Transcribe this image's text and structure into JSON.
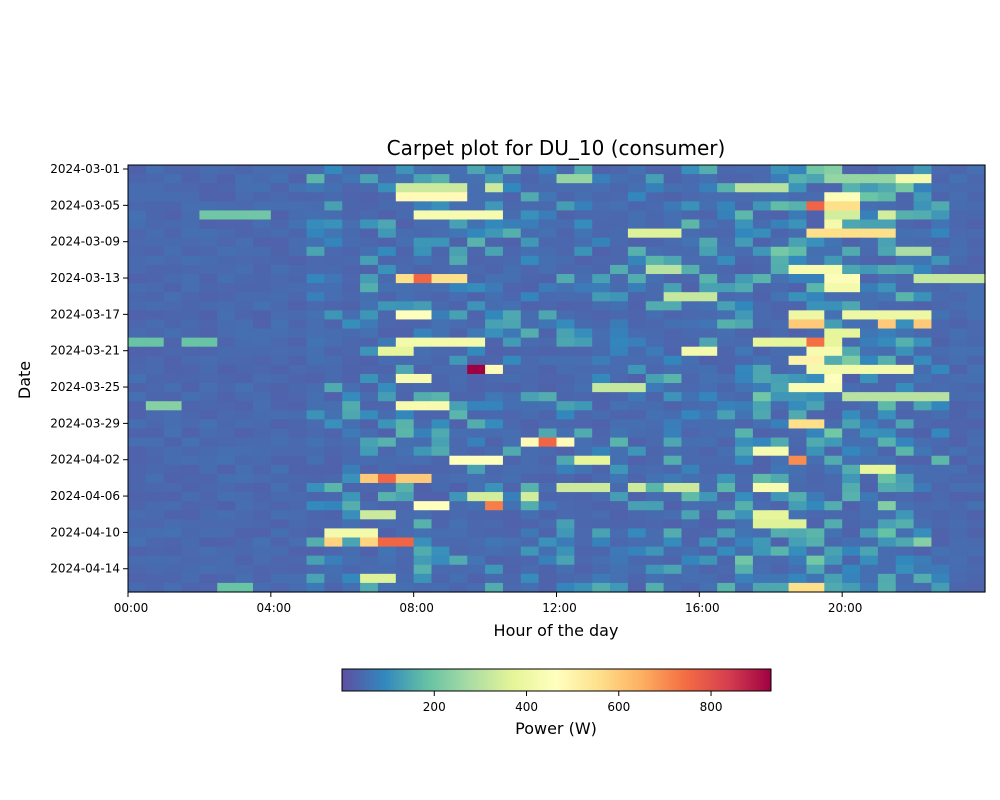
{
  "chart_data": {
    "type": "heatmap",
    "title": "Carpet plot for DU_10 (consumer)",
    "xlabel": "Hour of the day",
    "ylabel": "Date",
    "x_ticks": [
      "00:00",
      "04:00",
      "08:00",
      "12:00",
      "16:00",
      "20:00"
    ],
    "y_ticks": [
      "2024-03-01",
      "2024-03-05",
      "2024-03-09",
      "2024-03-13",
      "2024-03-17",
      "2024-03-21",
      "2024-03-25",
      "2024-03-29",
      "2024-04-02",
      "2024-04-06",
      "2024-04-10",
      "2024-04-14"
    ],
    "x_range": [
      "00:00",
      "24:00"
    ],
    "y_range": [
      "2024-03-01",
      "2024-04-17"
    ],
    "resolution_minutes": 30,
    "n_days": 47,
    "colorbar": {
      "label": "Power (W)",
      "colormap": "Spectral_r",
      "vmin": 0,
      "vmax": 930,
      "ticks": [
        200,
        400,
        600,
        800
      ]
    },
    "baseline_w": 30,
    "hotspots": [
      {
        "date": "2024-03-02",
        "hours": [
          12.0,
          12.5
        ],
        "value": 250
      },
      {
        "date": "2024-03-02",
        "hours": [
          19.5,
          20.0,
          20.5,
          21.0
        ],
        "value": 250
      },
      {
        "date": "2024-03-02",
        "hours": [
          21.5,
          22.0
        ],
        "value": 420
      },
      {
        "date": "2024-03-03",
        "hours": [
          7.5,
          8.0,
          8.5,
          9.0,
          10.0
        ],
        "value": 330
      },
      {
        "date": "2024-03-03",
        "hours": [
          17.0,
          17.5,
          18.0
        ],
        "value": 300
      },
      {
        "date": "2024-03-04",
        "hours": [
          7.5,
          8.0,
          8.5,
          9.0
        ],
        "value": 480
      },
      {
        "date": "2024-03-04",
        "hours": [
          19.5,
          20.0
        ],
        "value": 450
      },
      {
        "date": "2024-03-05",
        "hours": [
          19.0
        ],
        "value": 760
      },
      {
        "date": "2024-03-05",
        "hours": [
          19.5,
          20.0
        ],
        "value": 560
      },
      {
        "date": "2024-03-06",
        "hours": [
          2.0,
          2.5,
          3.0,
          3.5
        ],
        "value": 200
      },
      {
        "date": "2024-03-06",
        "hours": [
          8.0,
          8.5,
          9.0,
          9.5,
          10.0
        ],
        "value": 430
      },
      {
        "date": "2024-03-06",
        "hours": [
          19.5,
          20.0,
          21.0
        ],
        "value": 340
      },
      {
        "date": "2024-03-07",
        "hours": [
          19.5
        ],
        "value": 420
      },
      {
        "date": "2024-03-08",
        "hours": [
          14.0,
          14.5,
          15.0
        ],
        "value": 360
      },
      {
        "date": "2024-03-08",
        "hours": [
          19.0,
          19.5,
          20.0,
          20.5,
          21.0
        ],
        "value": 560
      },
      {
        "date": "2024-03-10",
        "hours": [
          21.5,
          22.0
        ],
        "value": 280
      },
      {
        "date": "2024-03-12",
        "hours": [
          14.5,
          15.0
        ],
        "value": 300
      },
      {
        "date": "2024-03-12",
        "hours": [
          18.5,
          19.0,
          19.5
        ],
        "value": 430
      },
      {
        "date": "2024-03-13",
        "hours": [
          7.5,
          8.0,
          8.5,
          9.0
        ],
        "value": 560
      },
      {
        "date": "2024-03-13",
        "hours": [
          8.0
        ],
        "value": 760
      },
      {
        "date": "2024-03-13",
        "hours": [
          19.5,
          20.0
        ],
        "value": 450
      },
      {
        "date": "2024-03-13",
        "hours": [
          22.0,
          22.5,
          23.0,
          23.5
        ],
        "value": 320
      },
      {
        "date": "2024-03-14",
        "hours": [
          19.5,
          20.0
        ],
        "value": 420
      },
      {
        "date": "2024-03-15",
        "hours": [
          15.0,
          15.5,
          16.0
        ],
        "value": 320
      },
      {
        "date": "2024-03-17",
        "hours": [
          7.5,
          8.0
        ],
        "value": 460
      },
      {
        "date": "2024-03-17",
        "hours": [
          18.5,
          19.0,
          20.0,
          20.5,
          21.0,
          21.5,
          22.0
        ],
        "value": 400
      },
      {
        "date": "2024-03-18",
        "hours": [
          18.5,
          19.0,
          21.0,
          22.0
        ],
        "value": 600
      },
      {
        "date": "2024-03-19",
        "hours": [
          19.5,
          20.0
        ],
        "value": 380
      },
      {
        "date": "2024-03-20",
        "hours": [
          0.0,
          0.5,
          1.5,
          2.0
        ],
        "value": 190
      },
      {
        "date": "2024-03-20",
        "hours": [
          7.5,
          8.0,
          8.5,
          9.0,
          9.5
        ],
        "value": 420
      },
      {
        "date": "2024-03-20",
        "hours": [
          17.5,
          18.0,
          18.5,
          19.0,
          19.5
        ],
        "value": 380
      },
      {
        "date": "2024-03-20",
        "hours": [
          19.0
        ],
        "value": 740
      },
      {
        "date": "2024-03-21",
        "hours": [
          7.0,
          7.5
        ],
        "value": 380
      },
      {
        "date": "2024-03-21",
        "hours": [
          15.5,
          16.0
        ],
        "value": 420
      },
      {
        "date": "2024-03-21",
        "hours": [
          19.0,
          19.5
        ],
        "value": 430
      },
      {
        "date": "2024-03-22",
        "hours": [
          18.5,
          19.0
        ],
        "value": 500
      },
      {
        "date": "2024-03-23",
        "hours": [
          9.5
        ],
        "value": 700
      },
      {
        "date": "2024-03-23",
        "hours": [
          9.75
        ],
        "value": 930
      },
      {
        "date": "2024-03-23",
        "hours": [
          10.0
        ],
        "value": 480
      },
      {
        "date": "2024-03-23",
        "hours": [
          19.0,
          19.5,
          20.0,
          20.5,
          21.0,
          21.5
        ],
        "value": 420
      },
      {
        "date": "2024-03-24",
        "hours": [
          7.5,
          8.0
        ],
        "value": 430
      },
      {
        "date": "2024-03-24",
        "hours": [
          19.5
        ],
        "value": 460
      },
      {
        "date": "2024-03-25",
        "hours": [
          13.0,
          13.5,
          14.0
        ],
        "value": 320
      },
      {
        "date": "2024-03-25",
        "hours": [
          18.5,
          19.0,
          19.5
        ],
        "value": 440
      },
      {
        "date": "2024-03-26",
        "hours": [
          20.0,
          20.5,
          21.0,
          21.5,
          22.0,
          22.5
        ],
        "value": 300
      },
      {
        "date": "2024-03-27",
        "hours": [
          0.5,
          1.0
        ],
        "value": 230
      },
      {
        "date": "2024-03-27",
        "hours": [
          7.5,
          8.0,
          8.5
        ],
        "value": 430
      },
      {
        "date": "2024-03-29",
        "hours": [
          18.5,
          19.0
        ],
        "value": 560
      },
      {
        "date": "2024-03-31",
        "hours": [
          11.0,
          11.5,
          12.0
        ],
        "value": 480
      },
      {
        "date": "2024-03-31",
        "hours": [
          11.75
        ],
        "value": 760
      },
      {
        "date": "2024-04-01",
        "hours": [
          17.5,
          18.0
        ],
        "value": 430
      },
      {
        "date": "2024-04-02",
        "hours": [
          9.0,
          9.5,
          10.0
        ],
        "value": 460
      },
      {
        "date": "2024-04-02",
        "hours": [
          12.5,
          13.0
        ],
        "value": 380
      },
      {
        "date": "2024-04-02",
        "hours": [
          18.5
        ],
        "value": 700
      },
      {
        "date": "2024-04-03",
        "hours": [
          20.5,
          21.0
        ],
        "value": 380
      },
      {
        "date": "2024-04-04",
        "hours": [
          6.5,
          7.0,
          7.5,
          8.0
        ],
        "value": 600
      },
      {
        "date": "2024-04-04",
        "hours": [
          7.0
        ],
        "value": 760
      },
      {
        "date": "2024-04-05",
        "hours": [
          12.0,
          12.5,
          13.0,
          14.0,
          15.0,
          15.5
        ],
        "value": 330
      },
      {
        "date": "2024-04-05",
        "hours": [
          17.5,
          18.0
        ],
        "value": 430
      },
      {
        "date": "2024-04-06",
        "hours": [
          9.5,
          10.0,
          11.0
        ],
        "value": 340
      },
      {
        "date": "2024-04-07",
        "hours": [
          8.0,
          8.5
        ],
        "value": 460
      },
      {
        "date": "2024-04-07",
        "hours": [
          10.0
        ],
        "value": 720
      },
      {
        "date": "2024-04-08",
        "hours": [
          6.5,
          7.0
        ],
        "value": 330
      },
      {
        "date": "2024-04-08",
        "hours": [
          17.5,
          18.0
        ],
        "value": 380
      },
      {
        "date": "2024-04-09",
        "hours": [
          17.5,
          18.0,
          18.5
        ],
        "value": 360
      },
      {
        "date": "2024-04-10",
        "hours": [
          5.5,
          6.0,
          6.5
        ],
        "value": 420
      },
      {
        "date": "2024-04-11",
        "hours": [
          5.5,
          6.5,
          7.0
        ],
        "value": 580
      },
      {
        "date": "2024-04-11",
        "hours": [
          7.0,
          7.5
        ],
        "value": 760
      },
      {
        "date": "2024-04-15",
        "hours": [
          6.5,
          7.0
        ],
        "value": 360
      },
      {
        "date": "2024-04-16",
        "hours": [
          2.5,
          3.0
        ],
        "value": 190
      },
      {
        "date": "2024-04-16",
        "hours": [
          18.5,
          19.0
        ],
        "value": 560
      },
      {
        "date": "2024-04-17",
        "hours": [
          21.0,
          21.5
        ],
        "value": 430
      }
    ],
    "colormap_stops": [
      "#5e4fa2",
      "#3288bd",
      "#66c2a5",
      "#abdda4",
      "#e6f598",
      "#ffffbf",
      "#fee08b",
      "#fdae61",
      "#f46d43",
      "#d53e4f",
      "#9e0142"
    ],
    "grid": false
  }
}
